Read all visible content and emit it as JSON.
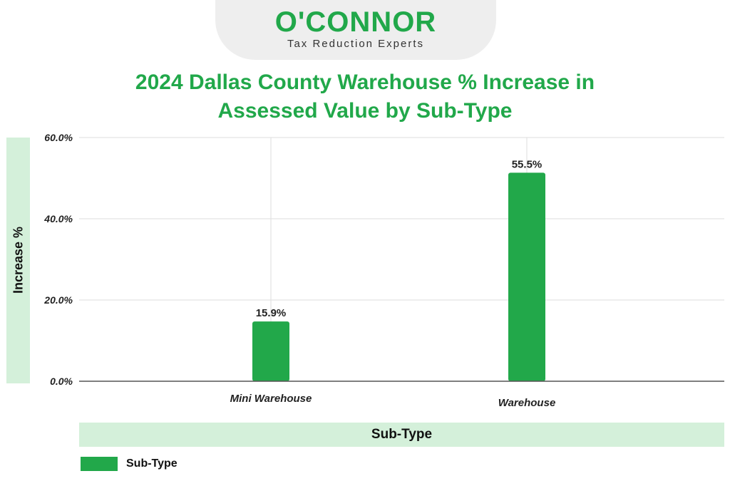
{
  "brand": {
    "name": "O'CONNOR",
    "tagline": "Tax Reduction Experts"
  },
  "colors": {
    "accent": "#21a84a",
    "bar": "#22a84a",
    "panel": "#d4f0da"
  },
  "chart_data": {
    "type": "bar",
    "title": "2024 Dallas County Warehouse % Increase in Assessed Value by Sub-Type",
    "title_lines": [
      "2024 Dallas County Warehouse % Increase in",
      "Assessed Value by Sub-Type"
    ],
    "xlabel": "Sub-Type",
    "ylabel": "Increase %",
    "categories": [
      "Mini Warehouse",
      "Warehouse"
    ],
    "series": [
      {
        "name": "Sub-Type",
        "values": [
          15.9,
          55.5
        ]
      }
    ],
    "data_labels": [
      "15.9%",
      "55.5%"
    ],
    "yticks": [
      0,
      20,
      40,
      60
    ],
    "ytick_labels": [
      "0.0%",
      "20.0%",
      "40.0%",
      "60.0%"
    ],
    "ylim": [
      0,
      60
    ],
    "grid": true,
    "legend_position": "bottom-left"
  }
}
